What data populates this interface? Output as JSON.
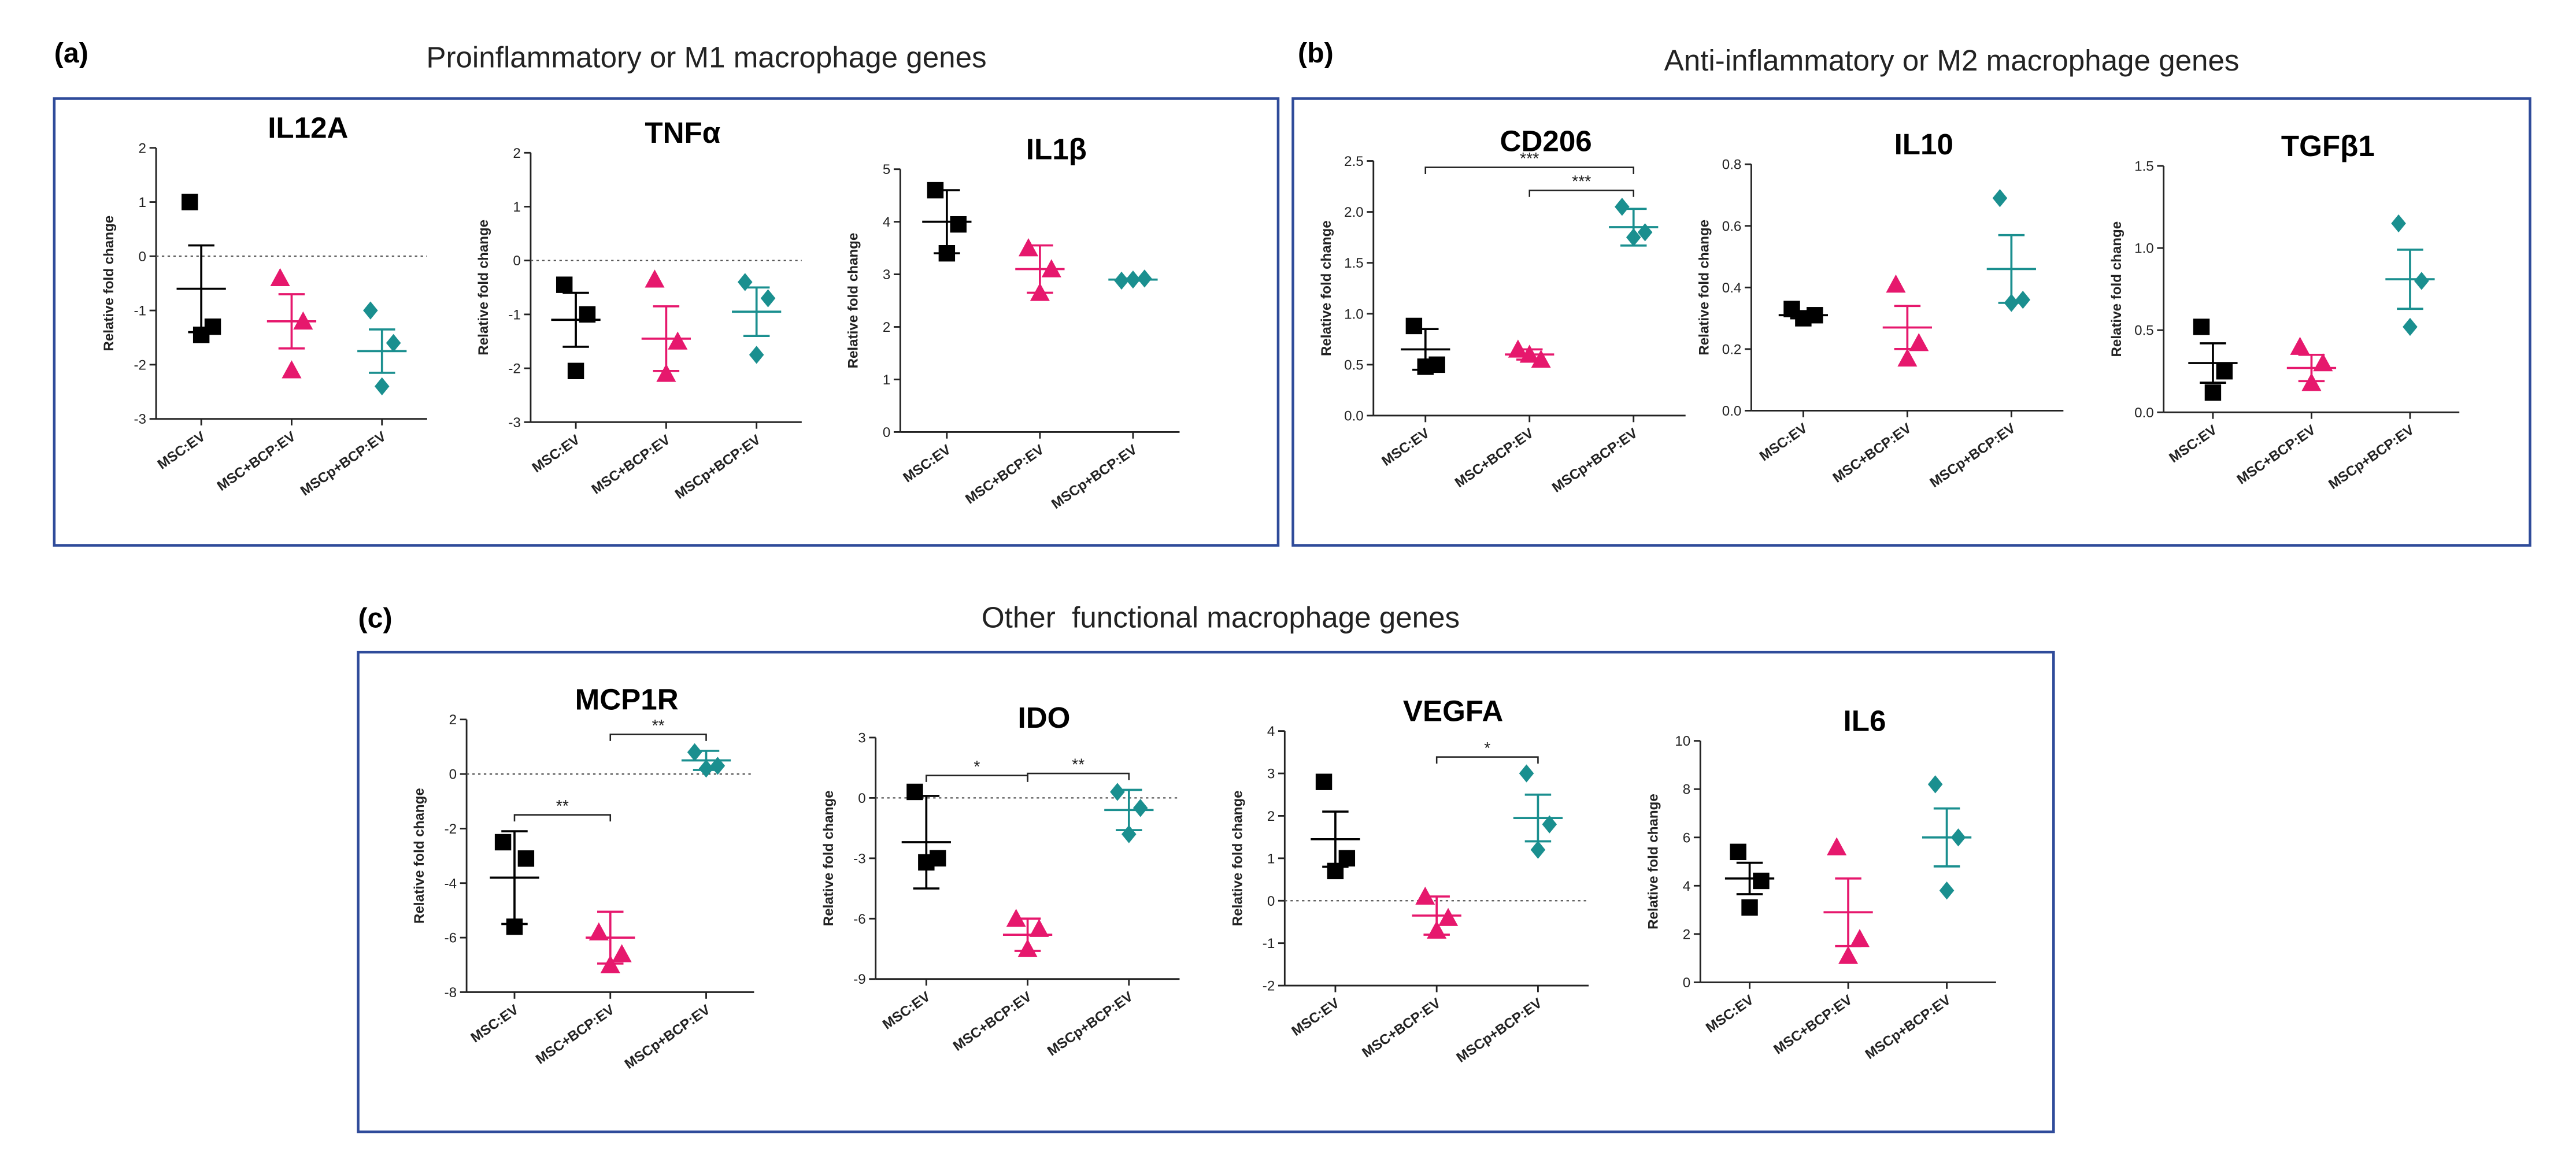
{
  "panels": [
    {
      "label": "(a)",
      "title": "Proinflammatory or M1 macrophage genes"
    },
    {
      "label": "(b)",
      "title": "Anti-inflammatory or M2 macrophage genes"
    },
    {
      "label": "(c)",
      "title": "Other  functional macrophage genes"
    }
  ],
  "chart_data": [
    {
      "type": "dot",
      "title": "IL12A",
      "ylabel": "Relative fold change",
      "categories": [
        "MSC:EV",
        "MSC+BCP:EV",
        "MSCp+BCP:EV"
      ],
      "colors": [
        "#000000",
        "#e6186d",
        "#1a8f8f"
      ],
      "markers": [
        "square",
        "triangle",
        "diamond"
      ],
      "points": [
        [
          1.0,
          -1.3,
          -1.45
        ],
        [
          -0.4,
          -1.2,
          -2.1
        ],
        [
          -1.0,
          -1.6,
          -2.4
        ]
      ],
      "means": [
        -0.6,
        -1.2,
        -1.75
      ],
      "errors": [
        0.8,
        0.5,
        0.4
      ],
      "ylim": [
        -3,
        2
      ],
      "yticks": [
        -3,
        -2,
        -1,
        0,
        1,
        2
      ],
      "reference_line": 0,
      "annotations": []
    },
    {
      "type": "dot",
      "title": "TNFα",
      "ylabel": "Relative fold change",
      "categories": [
        "MSC:EV",
        "MSC+BCP:EV",
        "MSCp+BCP:EV"
      ],
      "colors": [
        "#000000",
        "#e6186d",
        "#1a8f8f"
      ],
      "markers": [
        "square",
        "triangle",
        "diamond"
      ],
      "points": [
        [
          -0.45,
          -1.0,
          -2.05
        ],
        [
          -0.35,
          -1.5,
          -2.1
        ],
        [
          -0.4,
          -0.7,
          -1.75
        ]
      ],
      "means": [
        -1.1,
        -1.45,
        -0.95
      ],
      "errors": [
        0.5,
        0.6,
        0.45
      ],
      "ylim": [
        -3,
        2
      ],
      "yticks": [
        -3,
        -2,
        -1,
        0,
        1,
        2
      ],
      "reference_line": 0,
      "annotations": []
    },
    {
      "type": "dot",
      "title": "IL1β",
      "ylabel": "Relative fold change",
      "categories": [
        "MSC:EV",
        "MSC+BCP:EV",
        "MSCp+BCP:EV"
      ],
      "colors": [
        "#000000",
        "#e6186d",
        "#1a8f8f"
      ],
      "markers": [
        "square",
        "triangle",
        "diamond"
      ],
      "points": [
        [
          4.6,
          3.95,
          3.4
        ],
        [
          3.5,
          3.1,
          2.65
        ],
        [
          2.88,
          2.92,
          2.9
        ]
      ],
      "means": [
        4.0,
        3.1,
        2.9
      ],
      "errors": [
        0.6,
        0.45,
        0.02
      ],
      "ylim": [
        0,
        5
      ],
      "yticks": [
        0,
        1,
        2,
        3,
        4,
        5
      ],
      "annotations": []
    },
    {
      "type": "dot",
      "title": "CD206",
      "ylabel": "Relative fold change",
      "categories": [
        "MSC:EV",
        "MSC+BCP:EV",
        "MSCp+BCP:EV"
      ],
      "colors": [
        "#000000",
        "#e6186d",
        "#1a8f8f"
      ],
      "markers": [
        "square",
        "triangle",
        "diamond"
      ],
      "points": [
        [
          0.88,
          0.5,
          0.48
        ],
        [
          0.65,
          0.55,
          0.6
        ],
        [
          2.05,
          1.8,
          1.75
        ]
      ],
      "means": [
        0.65,
        0.6,
        1.85
      ],
      "errors": [
        0.2,
        0.05,
        0.18
      ],
      "ylim": [
        0,
        2.5
      ],
      "yticks": [
        {
          "value": 0,
          "label": "0.0"
        },
        {
          "value": 0.5,
          "label": "0.5"
        },
        {
          "value": 1,
          "label": "1.0"
        },
        {
          "value": 1.5,
          "label": "1.5"
        },
        {
          "value": 2,
          "label": "2.0"
        },
        2.5
      ],
      "annotations": [
        {
          "label": "***",
          "from": 0,
          "to": 2
        },
        {
          "label": "***",
          "from": 1,
          "to": 2
        }
      ]
    },
    {
      "type": "dot",
      "title": "IL10",
      "ylabel": "Relative fold change",
      "categories": [
        "MSC:EV",
        "MSC+BCP:EV",
        "MSCp+BCP:EV"
      ],
      "colors": [
        "#000000",
        "#e6186d",
        "#1a8f8f"
      ],
      "markers": [
        "square",
        "triangle",
        "diamond"
      ],
      "points": [
        [
          0.33,
          0.31,
          0.3
        ],
        [
          0.41,
          0.22,
          0.17
        ],
        [
          0.69,
          0.36,
          0.35
        ]
      ],
      "means": [
        0.31,
        0.27,
        0.46
      ],
      "errors": [
        0.01,
        0.07,
        0.11
      ],
      "ylim": [
        0,
        0.8
      ],
      "yticks": [
        {
          "value": 0,
          "label": "0.0"
        },
        0.2,
        0.4,
        0.6,
        0.8
      ],
      "annotations": []
    },
    {
      "type": "dot",
      "title": "TGFβ1",
      "ylabel": "Relative fold change",
      "categories": [
        "MSC:EV",
        "MSC+BCP:EV",
        "MSCp+BCP:EV"
      ],
      "colors": [
        "#000000",
        "#e6186d",
        "#1a8f8f"
      ],
      "markers": [
        "square",
        "triangle",
        "diamond"
      ],
      "points": [
        [
          0.52,
          0.25,
          0.12
        ],
        [
          0.4,
          0.3,
          0.18
        ],
        [
          1.15,
          0.8,
          0.52
        ]
      ],
      "means": [
        0.3,
        0.27,
        0.81
      ],
      "errors": [
        0.12,
        0.08,
        0.18
      ],
      "ylim": [
        0,
        1.5
      ],
      "yticks": [
        {
          "value": 0,
          "label": "0.0"
        },
        0.5,
        {
          "value": 1,
          "label": "1.0"
        },
        1.5
      ],
      "annotations": []
    },
    {
      "type": "dot",
      "title": "MCP1R",
      "ylabel": "Relative fold change",
      "categories": [
        "MSC:EV",
        "MSC+BCP:EV",
        "MSCp+BCP:EV"
      ],
      "colors": [
        "#000000",
        "#e6186d",
        "#1a8f8f"
      ],
      "markers": [
        "square",
        "triangle",
        "diamond"
      ],
      "points": [
        [
          -2.5,
          -3.1,
          -5.6
        ],
        [
          -5.8,
          -6.6,
          -7.0
        ],
        [
          0.8,
          0.3,
          0.2
        ]
      ],
      "means": [
        -3.8,
        -6.0,
        0.5
      ],
      "errors": [
        1.7,
        0.95,
        0.35
      ],
      "ylim": [
        -8,
        2
      ],
      "yticks": [
        -8,
        -6,
        -4,
        -2,
        0,
        2
      ],
      "reference_line": 0,
      "annotations": [
        {
          "label": "**",
          "from": 0,
          "to": 1
        },
        {
          "label": "**",
          "from": 1,
          "to": 2
        }
      ]
    },
    {
      "type": "dot",
      "title": "IDO",
      "ylabel": "Relative fold change",
      "categories": [
        "MSC:EV",
        "MSC+BCP:EV",
        "MSCp+BCP:EV"
      ],
      "colors": [
        "#000000",
        "#e6186d",
        "#1a8f8f"
      ],
      "markers": [
        "square",
        "triangle",
        "diamond"
      ],
      "points": [
        [
          0.3,
          -3.0,
          -3.2
        ],
        [
          -6.0,
          -6.5,
          -7.5
        ],
        [
          0.3,
          -0.5,
          -1.8
        ]
      ],
      "means": [
        -2.2,
        -6.8,
        -0.6
      ],
      "errors": [
        2.3,
        0.8,
        1.0
      ],
      "ylim": [
        -9,
        3
      ],
      "yticks": [
        -9,
        -6,
        -3,
        0,
        3
      ],
      "reference_line": 0,
      "annotations": [
        {
          "label": "*",
          "from": 0,
          "to": 1
        },
        {
          "label": "**",
          "from": 1,
          "to": 2
        }
      ]
    },
    {
      "type": "dot",
      "title": "VEGFA",
      "ylabel": "Relative fold change",
      "categories": [
        "MSC:EV",
        "MSC+BCP:EV",
        "MSCp+BCP:EV"
      ],
      "colors": [
        "#000000",
        "#e6186d",
        "#1a8f8f"
      ],
      "markers": [
        "square",
        "triangle",
        "diamond"
      ],
      "points": [
        [
          2.8,
          1.0,
          0.7
        ],
        [
          0.1,
          -0.4,
          -0.7
        ],
        [
          3.0,
          1.8,
          1.2
        ]
      ],
      "means": [
        1.45,
        -0.35,
        1.95
      ],
      "errors": [
        0.65,
        0.45,
        0.55
      ],
      "ylim": [
        -2,
        4
      ],
      "yticks": [
        -2,
        -1,
        0,
        1,
        2,
        3,
        4
      ],
      "reference_line": 0,
      "annotations": [
        {
          "label": "*",
          "from": 1,
          "to": 2
        }
      ]
    },
    {
      "type": "dot",
      "title": "IL6",
      "ylabel": "Relative fold change",
      "categories": [
        "MSC:EV",
        "MSC+BCP:EV",
        "MSCp+BCP:EV"
      ],
      "colors": [
        "#000000",
        "#e6186d",
        "#1a8f8f"
      ],
      "markers": [
        "square",
        "triangle",
        "diamond"
      ],
      "points": [
        [
          5.4,
          4.2,
          3.1
        ],
        [
          5.6,
          1.8,
          1.1
        ],
        [
          8.2,
          6.0,
          3.8
        ]
      ],
      "means": [
        4.3,
        2.9,
        6.0
      ],
      "errors": [
        0.65,
        1.4,
        1.2
      ],
      "ylim": [
        0,
        10
      ],
      "yticks": [
        0,
        2,
        4,
        6,
        8,
        10
      ],
      "annotations": []
    }
  ]
}
